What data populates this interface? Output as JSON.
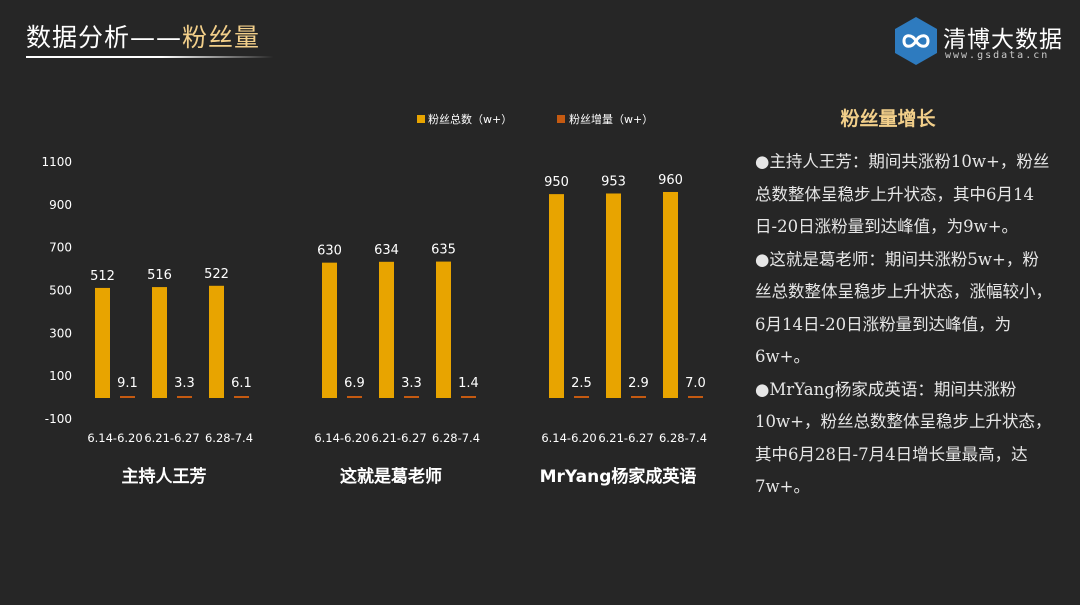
{
  "page": {
    "title_prefix": "数据分析——",
    "title_highlight": "粉丝量"
  },
  "logo": {
    "name": "清博大数据",
    "url": "www.gsdata.cn",
    "icon": "infinity-hexagon-icon",
    "color": "#2e7bbf"
  },
  "colors": {
    "total": "#e8a400",
    "increase": "#c55a11",
    "highlight": "#f2cf8a"
  },
  "chart_data": {
    "type": "bar",
    "ylim": [
      -100,
      1100
    ],
    "yticks": [
      "1100",
      "900",
      "700",
      "500",
      "300",
      "100",
      "-100"
    ],
    "grid": false,
    "legend_position": "top-center",
    "legend": [
      "粉丝总数（w+）",
      "粉丝增量（w+）"
    ],
    "groups": [
      {
        "name": "主持人王芳",
        "categories": [
          "6.14-6.20",
          "6.21-6.27",
          "6.28-7.4"
        ],
        "series": [
          {
            "name": "粉丝总数（w+）",
            "values": [
              512,
              516,
              522
            ],
            "labels": [
              "512",
              "516",
              "522"
            ]
          },
          {
            "name": "粉丝增量（w+）",
            "values": [
              9.1,
              3.3,
              6.1
            ],
            "labels": [
              "9.1",
              "3.3",
              "6.1"
            ]
          }
        ]
      },
      {
        "name": "这就是葛老师",
        "categories": [
          "6.14-6.20",
          "6.21-6.27",
          "6.28-7.4"
        ],
        "series": [
          {
            "name": "粉丝总数（w+）",
            "values": [
              630,
              634,
              635
            ],
            "labels": [
              "630",
              "634",
              "635"
            ]
          },
          {
            "name": "粉丝增量（w+）",
            "values": [
              6.9,
              3.3,
              1.4
            ],
            "labels": [
              "6.9",
              "3.3",
              "1.4"
            ]
          }
        ]
      },
      {
        "name": "MrYang杨家成英语",
        "categories": [
          "6.14-6.20",
          "6.21-6.27",
          "6.28-7.4"
        ],
        "series": [
          {
            "name": "粉丝总数（w+）",
            "values": [
              950,
              953,
              960
            ],
            "labels": [
              "950",
              "953",
              "960"
            ]
          },
          {
            "name": "粉丝增量（w+）",
            "values": [
              2.5,
              2.9,
              7.0
            ],
            "labels": [
              "2.5",
              "2.9",
              "7.0"
            ]
          }
        ]
      }
    ]
  },
  "side": {
    "title": "粉丝量增长",
    "paragraphs": [
      "●主持人王芳：期间共涨粉10w+，粉丝总数整体呈稳步上升状态，其中6月14日-20日涨粉量到达峰值，为9w+。",
      "●这就是葛老师：期间共涨粉5w+，粉丝总数整体呈稳步上升状态，涨幅较小，6月14日-20日涨粉量到达峰值，为6w+。",
      "●MrYang杨家成英语：期间共涨粉10w+，粉丝总数整体呈稳步上升状态，其中6月28日-7月4日增长量最高，达7w+。"
    ]
  }
}
